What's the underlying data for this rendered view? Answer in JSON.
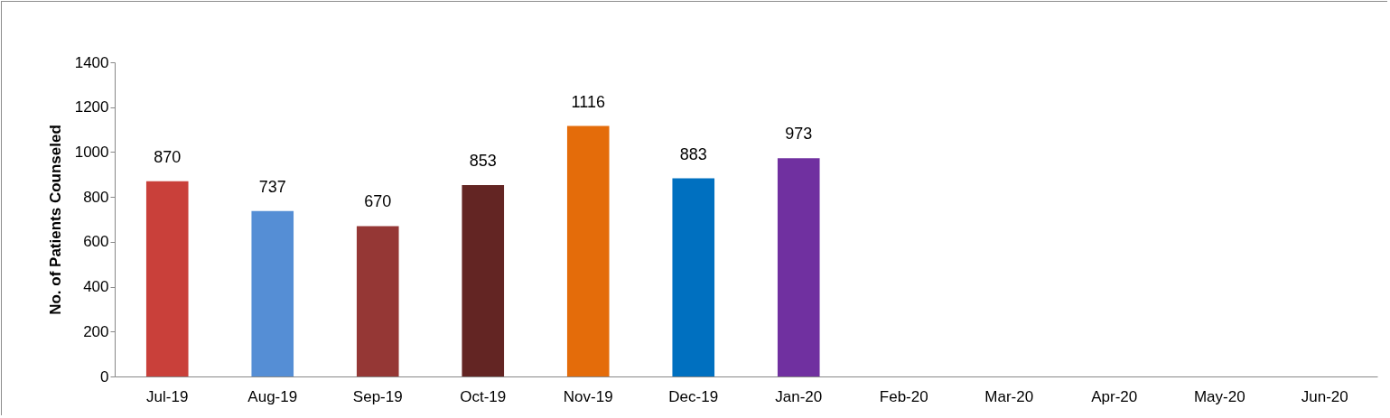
{
  "chart_data": {
    "type": "bar",
    "ylabel": "No. of Patients Counseled",
    "categories": [
      "Jul-19",
      "Aug-19",
      "Sep-19",
      "Oct-19",
      "Nov-19",
      "Dec-19",
      "Jan-20",
      "Feb-20",
      "Mar-20",
      "Apr-20",
      "May-20",
      "Jun-20"
    ],
    "values": [
      870,
      737,
      670,
      853,
      1116,
      883,
      973,
      null,
      null,
      null,
      null,
      null
    ],
    "colors": [
      "#c9403a",
      "#558ed5",
      "#953735",
      "#632523",
      "#e46c0a",
      "#0070c0",
      "#7030a0",
      "#7f7f7f",
      "#7f7f7f",
      "#7f7f7f",
      "#7f7f7f",
      "#7f7f7f"
    ],
    "ylim": [
      0,
      1400
    ],
    "yticks": [
      0,
      200,
      400,
      600,
      800,
      1000,
      1200,
      1400
    ],
    "grid": false,
    "data_labels": true,
    "legend": false
  }
}
